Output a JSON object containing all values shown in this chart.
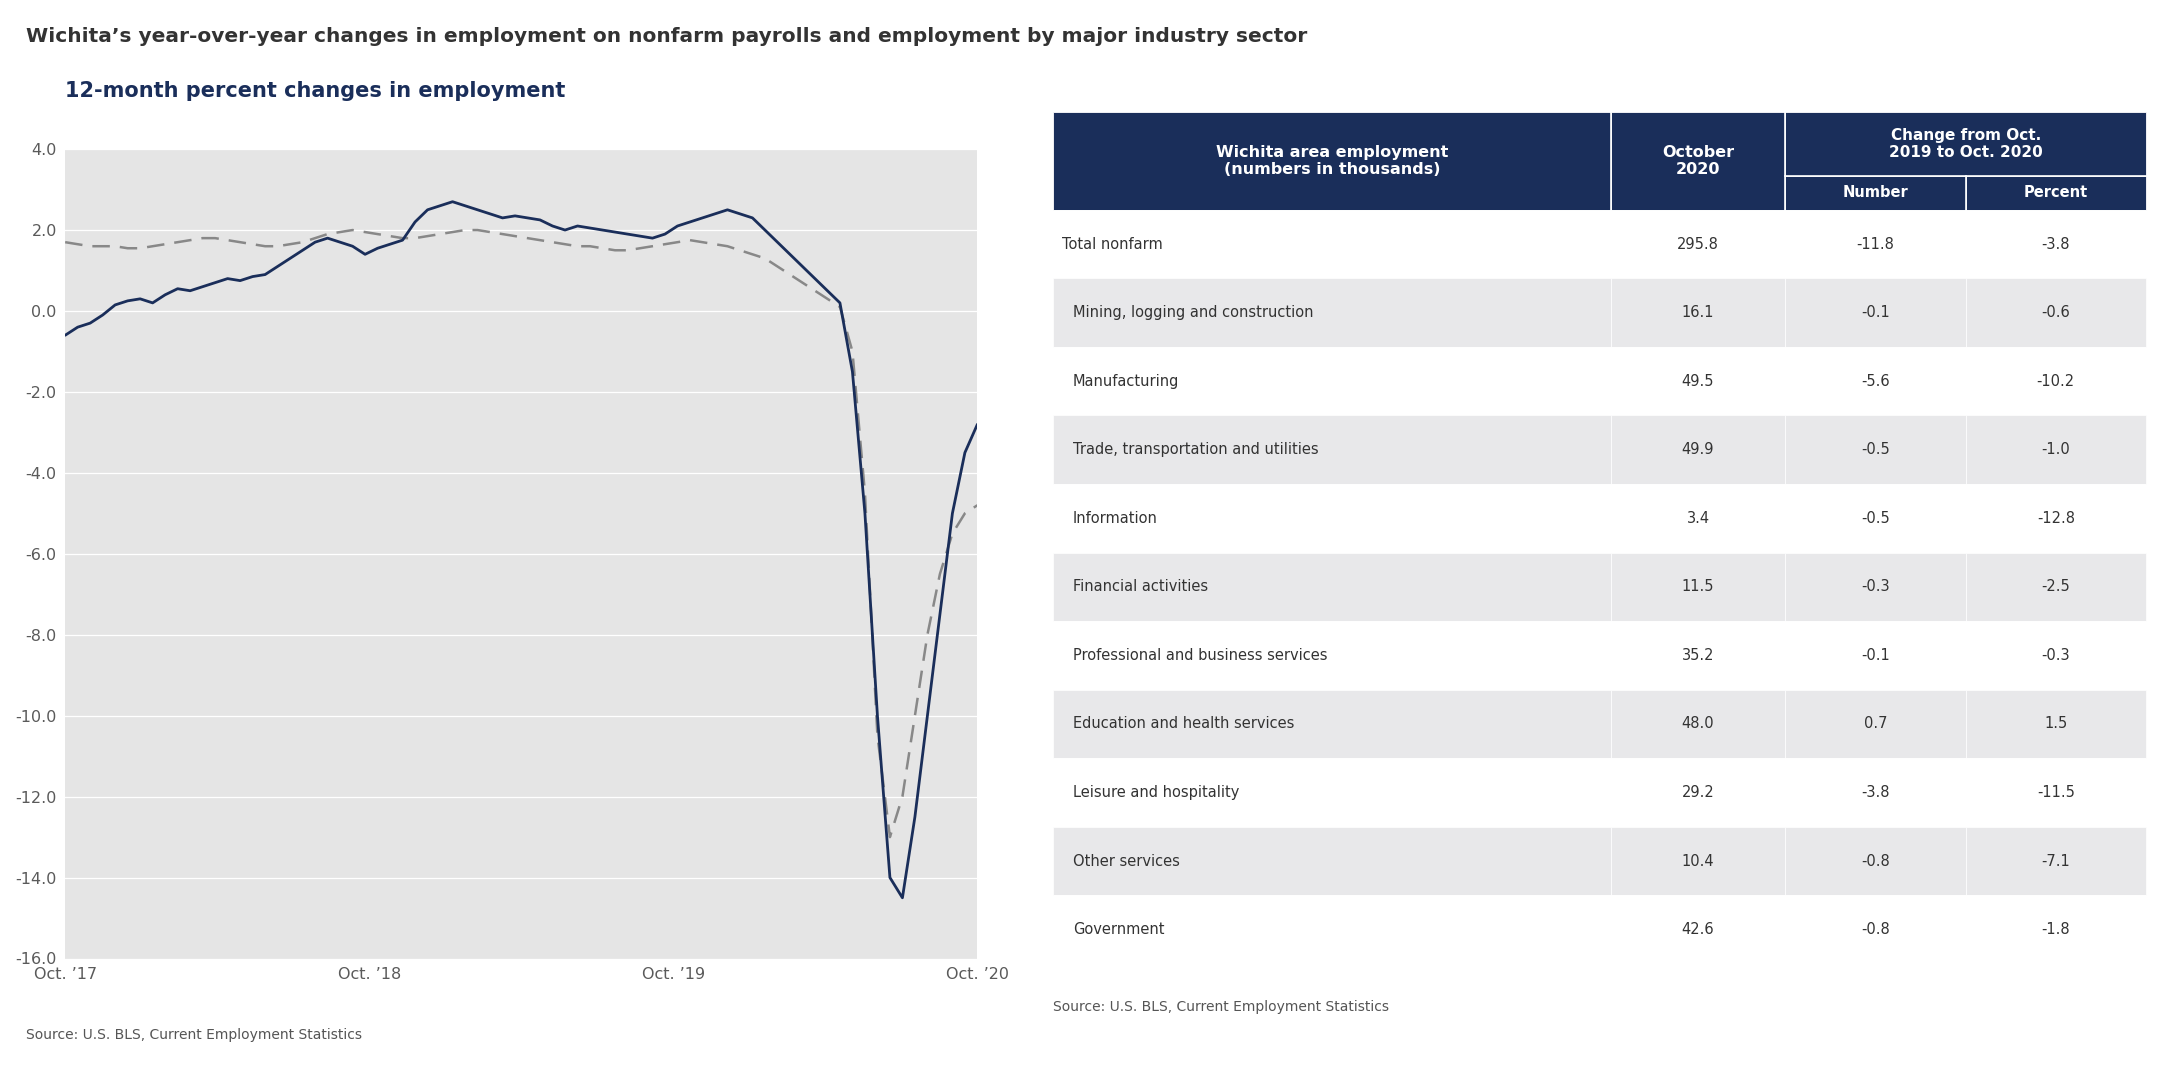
{
  "title": "Wichita’s year-over-year changes in employment on nonfarm payrolls and employment by major industry sector",
  "chart_title": "12-month percent changes in employment",
  "chart_bg": "#e5e5e5",
  "fig_bg": "#ffffff",
  "axis_label_color": "#5a5a5a",
  "title_color": "#333333",
  "chart_title_color": "#1a2e5a",
  "wichita_color": "#1a2e5a",
  "us_color": "#888888",
  "source_text": "Source: U.S. BLS, Current Employment Statistics",
  "ylim": [
    -16.0,
    4.0
  ],
  "yticks": [
    4.0,
    2.0,
    0.0,
    -2.0,
    -4.0,
    -6.0,
    -8.0,
    -10.0,
    -12.0,
    -14.0,
    -16.0
  ],
  "xtick_labels": [
    "Oct. ’17",
    "Oct. ’18",
    "Oct. ’19",
    "Oct. ’20"
  ],
  "wichita_data": [
    -0.6,
    -0.4,
    -0.3,
    -0.1,
    0.15,
    0.25,
    0.3,
    0.2,
    0.4,
    0.55,
    0.5,
    0.6,
    0.7,
    0.8,
    0.75,
    0.85,
    0.9,
    1.1,
    1.3,
    1.5,
    1.7,
    1.8,
    1.7,
    1.6,
    1.4,
    1.55,
    1.65,
    1.75,
    2.2,
    2.5,
    2.6,
    2.7,
    2.6,
    2.5,
    2.4,
    2.3,
    2.35,
    2.3,
    2.25,
    2.1,
    2.0,
    2.1,
    2.05,
    2.0,
    1.95,
    1.9,
    1.85,
    1.8,
    1.9,
    2.1,
    2.2,
    2.3,
    2.4,
    2.5,
    2.4,
    2.3,
    2.0,
    1.7,
    1.4,
    1.1,
    0.8,
    0.5,
    0.2,
    -1.5,
    -5.0,
    -10.0,
    -14.0,
    -14.5,
    -12.5,
    -10.0,
    -7.5,
    -5.0,
    -3.5,
    -2.8
  ],
  "us_data": [
    1.7,
    1.65,
    1.6,
    1.6,
    1.6,
    1.55,
    1.55,
    1.6,
    1.65,
    1.7,
    1.75,
    1.8,
    1.8,
    1.75,
    1.7,
    1.65,
    1.6,
    1.6,
    1.65,
    1.7,
    1.8,
    1.9,
    1.95,
    2.0,
    1.95,
    1.9,
    1.85,
    1.8,
    1.8,
    1.85,
    1.9,
    1.95,
    2.0,
    2.0,
    1.95,
    1.9,
    1.85,
    1.8,
    1.75,
    1.7,
    1.65,
    1.6,
    1.6,
    1.55,
    1.5,
    1.5,
    1.55,
    1.6,
    1.65,
    1.7,
    1.75,
    1.7,
    1.65,
    1.6,
    1.5,
    1.4,
    1.3,
    1.1,
    0.9,
    0.7,
    0.5,
    0.3,
    0.1,
    -1.0,
    -4.5,
    -10.5,
    -13.0,
    -12.0,
    -10.0,
    -8.0,
    -6.5,
    -5.5,
    -5.0,
    -4.8
  ],
  "table_header_bg": "#1a2e5a",
  "table_header_text": "#ffffff",
  "table_text_color": "#333333",
  "table_col1_header": "Wichita area employment\n(numbers in thousands)",
  "table_col2_header": "October\n2020",
  "table_col3_header": "Change from Oct.\n2019 to Oct. 2020",
  "table_col3a_header": "Number",
  "table_col3b_header": "Percent",
  "table_rows": [
    {
      "sector": "Total nonfarm",
      "oct2020": "295.8",
      "number": "-11.8",
      "percent": "-3.8",
      "indent": false
    },
    {
      "sector": "Mining, logging and construction",
      "oct2020": "16.1",
      "number": "-0.1",
      "percent": "-0.6",
      "indent": true
    },
    {
      "sector": "Manufacturing",
      "oct2020": "49.5",
      "number": "-5.6",
      "percent": "-10.2",
      "indent": true
    },
    {
      "sector": "Trade, transportation and utilities",
      "oct2020": "49.9",
      "number": "-0.5",
      "percent": "-1.0",
      "indent": true
    },
    {
      "sector": "Information",
      "oct2020": "3.4",
      "number": "-0.5",
      "percent": "-12.8",
      "indent": true
    },
    {
      "sector": "Financial activities",
      "oct2020": "11.5",
      "number": "-0.3",
      "percent": "-2.5",
      "indent": true
    },
    {
      "sector": "Professional and business services",
      "oct2020": "35.2",
      "number": "-0.1",
      "percent": "-0.3",
      "indent": true
    },
    {
      "sector": "Education and health services",
      "oct2020": "48.0",
      "number": "0.7",
      "percent": "1.5",
      "indent": true
    },
    {
      "sector": "Leisure and hospitality",
      "oct2020": "29.2",
      "number": "-3.8",
      "percent": "-11.5",
      "indent": true
    },
    {
      "sector": "Other services",
      "oct2020": "10.4",
      "number": "-0.8",
      "percent": "-7.1",
      "indent": true
    },
    {
      "sector": "Government",
      "oct2020": "42.6",
      "number": "-0.8",
      "percent": "-1.8",
      "indent": true
    }
  ],
  "table_source": "Source: U.S. BLS, Current Employment Statistics",
  "bg_colors": [
    "#ffffff",
    "#e8e8ea",
    "#ffffff",
    "#e8e8ea",
    "#ffffff",
    "#e8e8ea",
    "#ffffff",
    "#e8e8ea",
    "#ffffff",
    "#e8e8ea",
    "#ffffff"
  ]
}
